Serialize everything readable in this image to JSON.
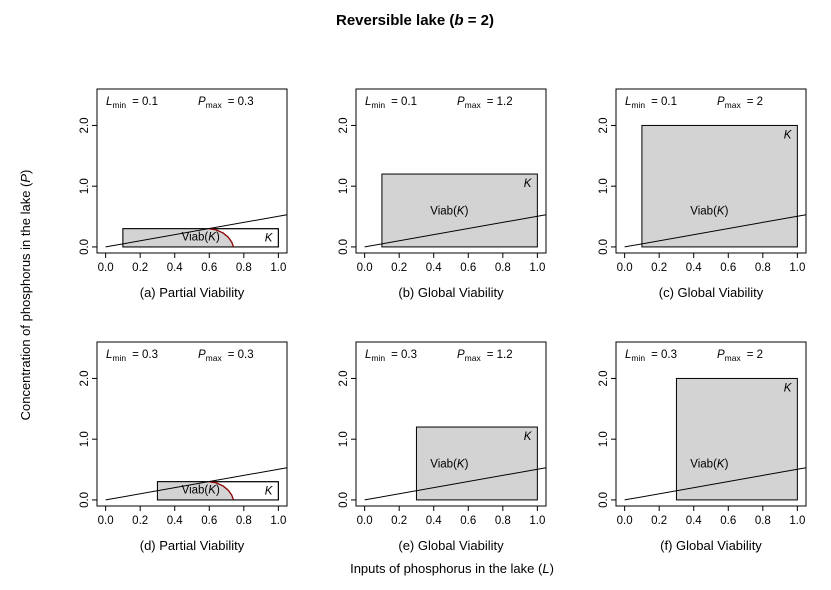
{
  "figure": {
    "title_prefix": "Reversible lake (",
    "title_var": "b",
    "title_suffix": " = 2)",
    "ylabel_prefix": "Concentration of phosphorus in the lake (",
    "ylabel_var": "P",
    "ylabel_suffix": ")",
    "xlabel_prefix": "Inputs of phosphorus in the lake (",
    "xlabel_var": "L",
    "xlabel_suffix": ")"
  },
  "labels": {
    "L": "L",
    "min": "min",
    "P": "P",
    "max": "max",
    "eq": "=",
    "K": "K",
    "viab_prefix": "Viab(",
    "viab_suffix": ")"
  },
  "colors": {
    "set_fill": "#d3d3d3",
    "viab_boundary": "#8b0000",
    "line": "#000000",
    "frame": "#000000"
  },
  "chart_data": [
    {
      "type": "line",
      "subtitle": "(a) Partial Viability",
      "lmin": "0.1",
      "pmax": "0.3",
      "K": {
        "L": [
          0.1,
          1.0
        ],
        "P": [
          0,
          0.3
        ]
      },
      "viability": "partial",
      "xlim": [
        -0.05,
        1.05
      ],
      "ylim": [
        -0.1,
        2.6
      ],
      "xticks": [
        0.0,
        0.2,
        0.4,
        0.6,
        0.8,
        1.0
      ],
      "xtick_labels": [
        "0.0",
        "0.2",
        "0.4",
        "0.6",
        "0.8",
        "1.0"
      ],
      "yticks": [
        0.0,
        1.0,
        2.0
      ],
      "ytick_labels": [
        "0.0",
        "1.0",
        "2.0"
      ],
      "equilibrium_line": {
        "x": [
          0,
          1.05
        ],
        "y": [
          0,
          0.53
        ]
      },
      "viab_boundary_curve": {
        "x": [
          0.6,
          0.64,
          0.68,
          0.71,
          0.73,
          0.74
        ],
        "y": [
          0.3,
          0.28,
          0.23,
          0.16,
          0.08,
          0.0
        ]
      }
    },
    {
      "type": "line",
      "subtitle": "(b) Global Viability",
      "lmin": "0.1",
      "pmax": "1.2",
      "K": {
        "L": [
          0.1,
          1.0
        ],
        "P": [
          0,
          1.2
        ]
      },
      "viability": "global",
      "xlim": [
        -0.05,
        1.05
      ],
      "ylim": [
        -0.1,
        2.6
      ],
      "xticks": [
        0.0,
        0.2,
        0.4,
        0.6,
        0.8,
        1.0
      ],
      "xtick_labels": [
        "0.0",
        "0.2",
        "0.4",
        "0.6",
        "0.8",
        "1.0"
      ],
      "yticks": [
        0.0,
        1.0,
        2.0
      ],
      "ytick_labels": [
        "0.0",
        "1.0",
        "2.0"
      ],
      "equilibrium_line": {
        "x": [
          0,
          1.05
        ],
        "y": [
          0,
          0.53
        ]
      }
    },
    {
      "type": "line",
      "subtitle": "(c) Global Viability",
      "lmin": "0.1",
      "pmax": "2",
      "K": {
        "L": [
          0.1,
          1.0
        ],
        "P": [
          0,
          2.0
        ]
      },
      "viability": "global",
      "xlim": [
        -0.05,
        1.05
      ],
      "ylim": [
        -0.1,
        2.6
      ],
      "xticks": [
        0.0,
        0.2,
        0.4,
        0.6,
        0.8,
        1.0
      ],
      "xtick_labels": [
        "0.0",
        "0.2",
        "0.4",
        "0.6",
        "0.8",
        "1.0"
      ],
      "yticks": [
        0.0,
        1.0,
        2.0
      ],
      "ytick_labels": [
        "0.0",
        "1.0",
        "2.0"
      ],
      "equilibrium_line": {
        "x": [
          0,
          1.05
        ],
        "y": [
          0,
          0.53
        ]
      }
    },
    {
      "type": "line",
      "subtitle": "(d) Partial Viability",
      "lmin": "0.3",
      "pmax": "0.3",
      "K": {
        "L": [
          0.3,
          1.0
        ],
        "P": [
          0,
          0.3
        ]
      },
      "viability": "partial",
      "xlim": [
        -0.05,
        1.05
      ],
      "ylim": [
        -0.1,
        2.6
      ],
      "xticks": [
        0.0,
        0.2,
        0.4,
        0.6,
        0.8,
        1.0
      ],
      "xtick_labels": [
        "0.0",
        "0.2",
        "0.4",
        "0.6",
        "0.8",
        "1.0"
      ],
      "yticks": [
        0.0,
        1.0,
        2.0
      ],
      "ytick_labels": [
        "0.0",
        "1.0",
        "2.0"
      ],
      "equilibrium_line": {
        "x": [
          0,
          1.05
        ],
        "y": [
          0,
          0.53
        ]
      },
      "viab_boundary_curve": {
        "x": [
          0.6,
          0.64,
          0.68,
          0.71,
          0.73,
          0.74
        ],
        "y": [
          0.3,
          0.28,
          0.23,
          0.16,
          0.08,
          0.0
        ]
      }
    },
    {
      "type": "line",
      "subtitle": "(e) Global Viability",
      "lmin": "0.3",
      "pmax": "1.2",
      "K": {
        "L": [
          0.3,
          1.0
        ],
        "P": [
          0,
          1.2
        ]
      },
      "viability": "global",
      "xlim": [
        -0.05,
        1.05
      ],
      "ylim": [
        -0.1,
        2.6
      ],
      "xticks": [
        0.0,
        0.2,
        0.4,
        0.6,
        0.8,
        1.0
      ],
      "xtick_labels": [
        "0.0",
        "0.2",
        "0.4",
        "0.6",
        "0.8",
        "1.0"
      ],
      "yticks": [
        0.0,
        1.0,
        2.0
      ],
      "ytick_labels": [
        "0.0",
        "1.0",
        "2.0"
      ],
      "equilibrium_line": {
        "x": [
          0,
          1.05
        ],
        "y": [
          0,
          0.53
        ]
      }
    },
    {
      "type": "line",
      "subtitle": "(f) Global Viability",
      "lmin": "0.3",
      "pmax": "2",
      "K": {
        "L": [
          0.3,
          1.0
        ],
        "P": [
          0,
          2.0
        ]
      },
      "viability": "global",
      "xlim": [
        -0.05,
        1.05
      ],
      "ylim": [
        -0.1,
        2.6
      ],
      "xticks": [
        0.0,
        0.2,
        0.4,
        0.6,
        0.8,
        1.0
      ],
      "xtick_labels": [
        "0.0",
        "0.2",
        "0.4",
        "0.6",
        "0.8",
        "1.0"
      ],
      "yticks": [
        0.0,
        1.0,
        2.0
      ],
      "ytick_labels": [
        "0.0",
        "1.0",
        "2.0"
      ],
      "equilibrium_line": {
        "x": [
          0,
          1.05
        ],
        "y": [
          0,
          0.53
        ]
      }
    }
  ]
}
